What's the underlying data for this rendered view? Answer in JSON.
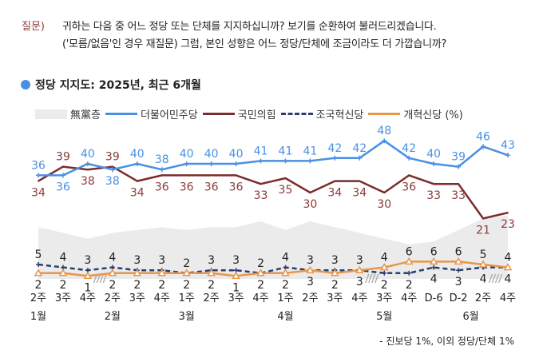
{
  "question": {
    "label": "질문)",
    "line1": "귀하는 다음 중 어느 정당 또는 단체를 지지하십니까? 보기를 순환하여 불러드리겠습니다.",
    "line2": "('모름/없음'인 경우 재질문) 그럼, 본인 성향은 어느 정당/단체에 조금이라도 더 가깝습니까?"
  },
  "footnote": "- 진보당 1%, 이외 정당/단체 1%",
  "colors": {
    "blue": "#4a90e2",
    "red": "#7b2c2c",
    "navy": "#2a3f6e",
    "orange": "#e8964a",
    "gray": "#ebebeb"
  },
  "chart_data": {
    "type": "line",
    "title": "정당 지지도: 2025년, 최근 6개월",
    "unit": "%",
    "x": [
      "2주",
      "3주",
      "4주",
      "2주",
      "3주",
      "4주",
      "1주",
      "2주",
      "3주",
      "4주",
      "1주",
      "2주",
      "3주",
      "4주",
      "3주",
      "4주",
      "D-6",
      "D-2",
      "2주",
      "4주"
    ],
    "months": [
      {
        "label": "1월",
        "index": 0
      },
      {
        "label": "2월",
        "index": 3
      },
      {
        "label": "3월",
        "index": 6
      },
      {
        "label": "4월",
        "index": 10
      },
      {
        "label": "5월",
        "index": 14
      },
      {
        "label": "6월",
        "index": 17.5
      }
    ],
    "breaks_after_index": [
      2,
      13,
      18
    ],
    "series": [
      {
        "name": "無黨층",
        "type": "area",
        "values": [
          18,
          16,
          14,
          16,
          17,
          18,
          17,
          18,
          18,
          20,
          17,
          20,
          18,
          16,
          14,
          12,
          13,
          17,
          21,
          22
        ],
        "labeled": false
      },
      {
        "name": "더불어민주당",
        "values": [
          36,
          36,
          40,
          38,
          40,
          38,
          40,
          40,
          40,
          41,
          41,
          41,
          42,
          42,
          48,
          42,
          40,
          39,
          46,
          43
        ]
      },
      {
        "name": "국민의힘",
        "values": [
          34,
          39,
          38,
          39,
          34,
          36,
          36,
          36,
          36,
          33,
          35,
          30,
          34,
          34,
          30,
          36,
          33,
          33,
          21,
          23
        ]
      },
      {
        "name": "조국혁신당",
        "values": [
          5,
          4,
          3,
          4,
          3,
          3,
          2,
          3,
          3,
          2,
          4,
          3,
          3,
          3,
          2,
          2,
          4,
          3,
          4,
          4
        ]
      },
      {
        "name": "개혁신당",
        "values": [
          2,
          2,
          1,
          2,
          2,
          2,
          2,
          2,
          1,
          2,
          2,
          3,
          2,
          3,
          4,
          6,
          6,
          6,
          5,
          4
        ]
      }
    ],
    "legend": [
      "無黨층",
      "더불어민주당",
      "국민의힘",
      "조국혁신당",
      "개혁신당 (%)"
    ],
    "legend_position": "top",
    "ylim": [
      0,
      50
    ],
    "grid": false
  }
}
